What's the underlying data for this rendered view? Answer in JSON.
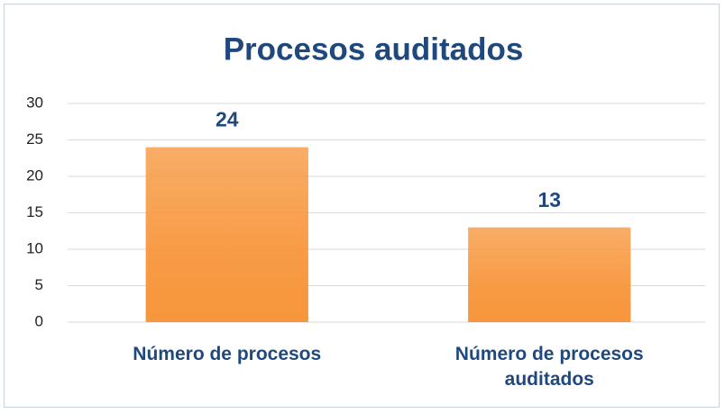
{
  "chart_data": {
    "type": "bar",
    "title": "Procesos auditados",
    "categories": [
      "Número de procesos",
      "Número de procesos auditados"
    ],
    "values": [
      24,
      13
    ],
    "color": "#f7963c",
    "ylim": [
      0,
      30
    ],
    "yticks": [
      0,
      5,
      10,
      15,
      20,
      25,
      30
    ],
    "grid": true
  }
}
